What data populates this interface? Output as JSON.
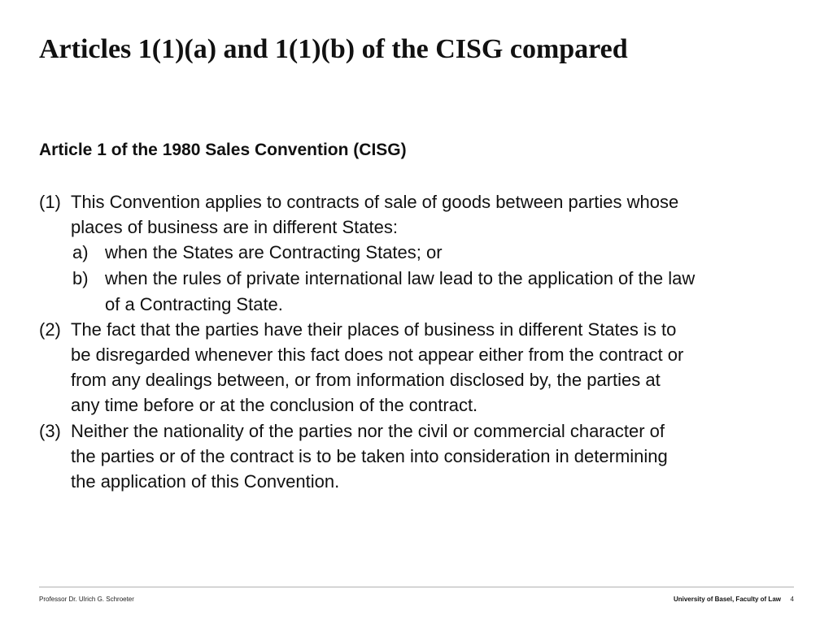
{
  "title": "Articles 1(1)(a) and 1(1)(b) of the CISG compared",
  "subheading": "Article 1 of the 1980 Sales Convention (CISG)",
  "paragraphs": {
    "p1": {
      "num": "(1)",
      "lines": [
        "This Convention applies to contracts of sale of goods between parties whose",
        "places of business are in different States:"
      ]
    },
    "a": {
      "num": "a)",
      "lines": [
        "when the States are Contracting States; or"
      ]
    },
    "b": {
      "num": "b)",
      "lines": [
        "when the rules of private international law lead to the application of the law",
        "of a Contracting State."
      ]
    },
    "p2": {
      "num": "(2)",
      "lines": [
        "The fact that the parties have their places of business in different States is to",
        "be disregarded whenever this fact does not appear either from the contract or",
        "from any dealings between, or from information disclosed by, the parties at",
        "any time before or at the conclusion of the contract."
      ]
    },
    "p3": {
      "num": "(3)",
      "lines": [
        "Neither the nationality of the parties nor the civil or commercial character of",
        "the parties or of the contract is to be taken into consideration in determining",
        "the application of this Convention."
      ]
    }
  },
  "footer": {
    "author": "Professor Dr. Ulrich G. Schroeter",
    "institution": "University of Basel, Faculty of Law",
    "page": "4"
  }
}
